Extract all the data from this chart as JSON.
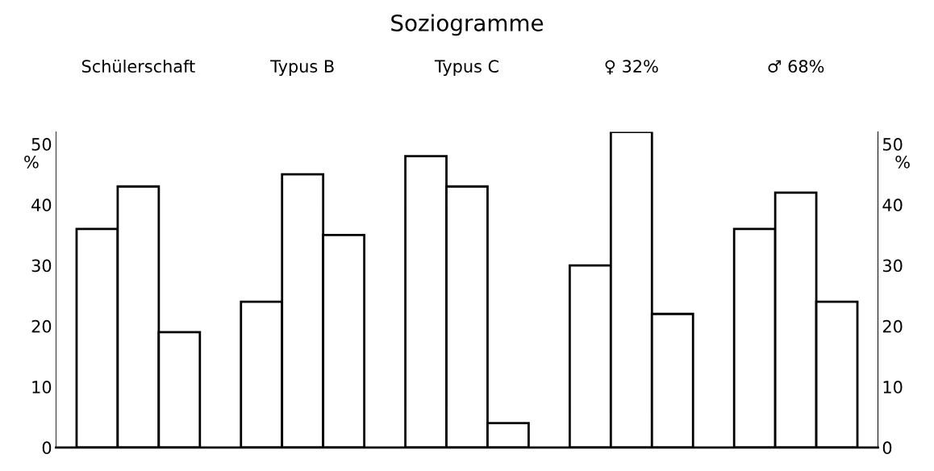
{
  "chart_data": {
    "type": "bar",
    "title": "Soziogramme",
    "ylabel": "%",
    "y2label": "%",
    "categories": [
      "Schülerschaft",
      "Typus B",
      "Typus C",
      "♀ 32%",
      "♂ 68%"
    ],
    "series": [
      {
        "color": "#ffffff",
        "values": [
          36,
          24,
          48,
          30,
          36
        ]
      },
      {
        "color": "#ffffff",
        "values": [
          43,
          45,
          43,
          52,
          42
        ]
      },
      {
        "color": "#ffffff",
        "values": [
          19,
          35,
          4,
          22,
          24
        ]
      }
    ],
    "ylim": [
      0,
      52
    ],
    "yticks": [
      0,
      10,
      20,
      30,
      40,
      50
    ],
    "y2lim": [
      0,
      52
    ],
    "y2ticks": [
      0,
      10,
      20,
      30,
      40,
      50
    ]
  }
}
